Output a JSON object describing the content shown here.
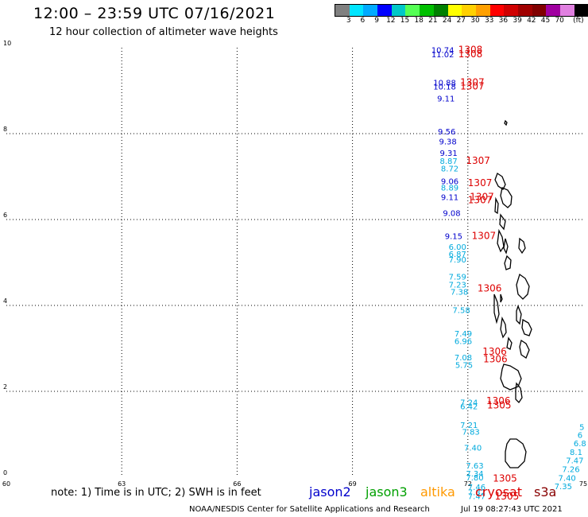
{
  "header": {
    "title": "12:00 – 23:59 UTC 07/16/2021",
    "subtitle": "12 hour collection of altimeter wave heights"
  },
  "colorbar": {
    "colors": [
      "#808080",
      "#00e5ff",
      "#00aaff",
      "#0000ff",
      "#00c8c8",
      "#55ff55",
      "#00c000",
      "#008000",
      "#ffff00",
      "#ffd000",
      "#ffa000",
      "#ff0000",
      "#d00000",
      "#a00000",
      "#800000",
      "#a000a0",
      "#e080e0",
      "#000000"
    ],
    "labels": [
      "3",
      "6",
      "9",
      "12",
      "15",
      "18",
      "21",
      "24",
      "27",
      "30",
      "33",
      "36",
      "39",
      "42",
      "45",
      "70",
      "(ft)"
    ]
  },
  "map": {
    "x_ticks": [
      "60",
      "63",
      "66",
      "69",
      "72",
      "75"
    ],
    "y_ticks": [
      "0",
      "2",
      "4",
      "6",
      "8",
      "10"
    ],
    "lon_range": [
      60,
      75
    ],
    "lat_range": [
      0,
      10
    ]
  },
  "observations": [
    {
      "text": "10.74",
      "lon": 71.05,
      "lat": 9.88,
      "color": "#0000cc"
    },
    {
      "text": "11.02",
      "lon": 71.05,
      "lat": 9.78,
      "color": "#0000cc"
    },
    {
      "text": "10.88",
      "lon": 71.1,
      "lat": 9.12,
      "color": "#0000cc"
    },
    {
      "text": "10.18",
      "lon": 71.1,
      "lat": 9.03,
      "color": "#0000cc"
    },
    {
      "text": "9.11",
      "lon": 71.2,
      "lat": 8.75,
      "color": "#0000cc"
    },
    {
      "text": "9.56",
      "lon": 71.22,
      "lat": 7.98,
      "color": "#0000cc"
    },
    {
      "text": "9.38",
      "lon": 71.25,
      "lat": 7.75,
      "color": "#0000cc"
    },
    {
      "text": "9.31",
      "lon": 71.27,
      "lat": 7.48,
      "color": "#0000cc"
    },
    {
      "text": "8.87",
      "lon": 71.27,
      "lat": 7.3,
      "color": "#00aadd"
    },
    {
      "text": "8.72",
      "lon": 71.3,
      "lat": 7.12,
      "color": "#00aadd"
    },
    {
      "text": "9.06",
      "lon": 71.3,
      "lat": 6.82,
      "color": "#0000cc"
    },
    {
      "text": "8.89",
      "lon": 71.3,
      "lat": 6.68,
      "color": "#00aadd"
    },
    {
      "text": "9.11",
      "lon": 71.3,
      "lat": 6.45,
      "color": "#0000cc"
    },
    {
      "text": "9.08",
      "lon": 71.35,
      "lat": 6.08,
      "color": "#0000cc"
    },
    {
      "text": "9.15",
      "lon": 71.4,
      "lat": 5.55,
      "color": "#0000cc"
    },
    {
      "text": "6.00",
      "lon": 71.5,
      "lat": 5.3,
      "color": "#00aadd"
    },
    {
      "text": "6.87",
      "lon": 71.5,
      "lat": 5.13,
      "color": "#00aadd"
    },
    {
      "text": "7.90",
      "lon": 71.5,
      "lat": 5.0,
      "color": "#00aadd"
    },
    {
      "text": "7.59",
      "lon": 71.5,
      "lat": 4.6,
      "color": "#00aadd"
    },
    {
      "text": "7.23",
      "lon": 71.5,
      "lat": 4.42,
      "color": "#00aadd"
    },
    {
      "text": "7.38",
      "lon": 71.55,
      "lat": 4.25,
      "color": "#00aadd"
    },
    {
      "text": "7.58",
      "lon": 71.6,
      "lat": 3.82,
      "color": "#00aadd"
    },
    {
      "text": "7.49",
      "lon": 71.65,
      "lat": 3.28,
      "color": "#00aadd"
    },
    {
      "text": "6.96",
      "lon": 71.65,
      "lat": 3.1,
      "color": "#00aadd"
    },
    {
      "text": "7.08",
      "lon": 71.65,
      "lat": 2.72,
      "color": "#00aadd"
    },
    {
      "text": "5.75",
      "lon": 71.67,
      "lat": 2.55,
      "color": "#00aadd"
    },
    {
      "text": "7.24",
      "lon": 71.8,
      "lat": 1.68,
      "color": "#00aadd"
    },
    {
      "text": "6.42",
      "lon": 71.8,
      "lat": 1.58,
      "color": "#00aadd"
    },
    {
      "text": "7.21",
      "lon": 71.8,
      "lat": 1.15,
      "color": "#00aadd"
    },
    {
      "text": "7.83",
      "lon": 71.85,
      "lat": 0.99,
      "color": "#00aadd"
    },
    {
      "text": "7.40",
      "lon": 71.9,
      "lat": 0.62,
      "color": "#00aadd"
    },
    {
      "text": "7.63",
      "lon": 71.95,
      "lat": 0.2,
      "color": "#00aadd"
    },
    {
      "text": "7.34",
      "lon": 71.95,
      "lat": 0.02,
      "color": "#00aadd"
    },
    {
      "text": "7.80",
      "lon": 71.95,
      "lat": -0.07,
      "color": "#00aadd"
    },
    {
      "text": "7.46",
      "lon": 72.0,
      "lat": -0.3,
      "color": "#00aadd"
    },
    {
      "text": "7.32",
      "lon": 72.0,
      "lat": -0.42,
      "color": "#00aadd"
    },
    {
      "text": "7.47",
      "lon": 72.0,
      "lat": -0.51,
      "color": "#00aadd"
    },
    {
      "text": "1308",
      "lon": 71.75,
      "lat": 9.88,
      "color": "#dd0000"
    },
    {
      "text": "1308",
      "lon": 71.75,
      "lat": 9.78,
      "color": "#dd0000"
    },
    {
      "text": "1307",
      "lon": 71.8,
      "lat": 9.12,
      "color": "#dd0000"
    },
    {
      "text": "1307",
      "lon": 71.8,
      "lat": 9.03,
      "color": "#dd0000"
    },
    {
      "text": "1307",
      "lon": 71.95,
      "lat": 7.3,
      "color": "#dd0000"
    },
    {
      "text": "1307",
      "lon": 72.0,
      "lat": 6.78,
      "color": "#dd0000"
    },
    {
      "text": "1307",
      "lon": 72.05,
      "lat": 6.45,
      "color": "#dd0000"
    },
    {
      "text": "1307",
      "lon": 72.0,
      "lat": 6.38,
      "color": "#dd0000"
    },
    {
      "text": "1307",
      "lon": 72.1,
      "lat": 5.55,
      "color": "#dd0000"
    },
    {
      "text": "1306",
      "lon": 72.25,
      "lat": 4.32,
      "color": "#dd0000"
    },
    {
      "text": "1306",
      "lon": 72.38,
      "lat": 2.85,
      "color": "#dd0000"
    },
    {
      "text": "1306",
      "lon": 72.4,
      "lat": 2.68,
      "color": "#dd0000"
    },
    {
      "text": "1306",
      "lon": 72.48,
      "lat": 1.7,
      "color": "#dd0000"
    },
    {
      "text": "1305",
      "lon": 72.5,
      "lat": 1.6,
      "color": "#dd0000"
    },
    {
      "text": "1305",
      "lon": 72.65,
      "lat": -0.1,
      "color": "#dd0000"
    },
    {
      "text": "1305",
      "lon": 72.7,
      "lat": -0.52,
      "color": "#dd0000"
    },
    {
      "text": "5",
      "lon": 74.9,
      "lat": 1.1,
      "color": "#00aadd"
    },
    {
      "text": "6",
      "lon": 74.85,
      "lat": 0.92,
      "color": "#00aadd"
    },
    {
      "text": "6.8",
      "lon": 74.75,
      "lat": 0.72,
      "color": "#00aadd"
    },
    {
      "text": "8.1",
      "lon": 74.65,
      "lat": 0.52,
      "color": "#00aadd"
    },
    {
      "text": "7.47",
      "lon": 74.55,
      "lat": 0.32,
      "color": "#00aadd"
    },
    {
      "text": "7.26",
      "lon": 74.45,
      "lat": 0.12,
      "color": "#00aadd"
    },
    {
      "text": "7.40",
      "lon": 74.35,
      "lat": -0.08,
      "color": "#00aadd"
    },
    {
      "text": "7.35",
      "lon": 74.25,
      "lat": -0.28,
      "color": "#00aadd"
    }
  ],
  "footer": {
    "note": "note: 1) Time is in UTC; 2) SWH is in feet",
    "credit": "NOAA/NESDIS Center for Satellite Applications and Research",
    "timestamp": "Jul 19 08:27:43 UTC 2021"
  },
  "legend": [
    {
      "name": "jason2",
      "color": "#0000cc"
    },
    {
      "name": "jason3",
      "color": "#00a000"
    },
    {
      "name": "altika",
      "color": "#ff9900"
    },
    {
      "name": "cryosat",
      "color": "#dd0000"
    },
    {
      "name": "s3a",
      "color": "#880000"
    }
  ]
}
